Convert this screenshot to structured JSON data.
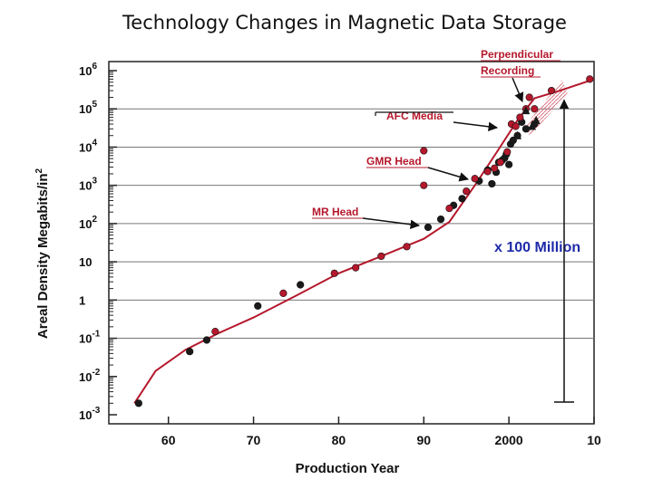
{
  "chart_data": {
    "type": "scatter",
    "title": "Technology Changes in Magnetic Data Storage",
    "xlabel": "Production Year",
    "ylabel": "Areal Density Megabits/in²",
    "ylabel_base": "Areal Density Megabits/in",
    "ylabel_sup": "2",
    "yscale": "log",
    "xlim": [
      1953,
      2010
    ],
    "ylim": [
      0.001,
      1000000
    ],
    "x_ticks": [
      {
        "value": 1960,
        "label": "60"
      },
      {
        "value": 1970,
        "label": "70"
      },
      {
        "value": 1980,
        "label": "80"
      },
      {
        "value": 1990,
        "label": "90"
      },
      {
        "value": 2000,
        "label": "2000"
      },
      {
        "value": 2010,
        "label": "10"
      }
    ],
    "y_ticks": [
      {
        "value": 0.001,
        "base": "10",
        "sup": "-3"
      },
      {
        "value": 0.01,
        "base": "10",
        "sup": "-2"
      },
      {
        "value": 0.1,
        "base": "10",
        "sup": "-1"
      },
      {
        "value": 1,
        "base": "1",
        "sup": ""
      },
      {
        "value": 10,
        "base": "10",
        "sup": ""
      },
      {
        "value": 100,
        "base": "10",
        "sup": "2"
      },
      {
        "value": 1000,
        "base": "10",
        "sup": "3"
      },
      {
        "value": 10000,
        "base": "10",
        "sup": "4"
      },
      {
        "value": 100000,
        "base": "10",
        "sup": "5"
      },
      {
        "value": 1000000,
        "base": "10",
        "sup": "6"
      }
    ],
    "gridlines_y": [
      0.1,
      1,
      10,
      100,
      1000,
      10000,
      100000
    ],
    "trend_line": {
      "name": "trend",
      "color": "#b5182c",
      "points": [
        [
          1956,
          0.002
        ],
        [
          1958.5,
          0.014
        ],
        [
          1962,
          0.05
        ],
        [
          1966,
          0.14
        ],
        [
          1970,
          0.35
        ],
        [
          1975,
          1.3
        ],
        [
          1980,
          5
        ],
        [
          1985,
          14
        ],
        [
          1990,
          40
        ],
        [
          1993,
          110
        ],
        [
          1996,
          1000
        ],
        [
          1998.5,
          7000
        ],
        [
          2001,
          50000
        ],
        [
          2003,
          190000
        ],
        [
          2006,
          300000
        ],
        [
          2010,
          600000
        ]
      ]
    },
    "series": [
      {
        "name": "Black data points",
        "color": "#1a1a1a",
        "points": [
          [
            1956.5,
            0.002
          ],
          [
            1962.5,
            0.045
          ],
          [
            1964.5,
            0.09
          ],
          [
            1970.5,
            0.7
          ],
          [
            1975.5,
            2.5
          ],
          [
            1990.5,
            80
          ],
          [
            1992,
            130
          ],
          [
            1993.5,
            300
          ],
          [
            1994.5,
            450
          ],
          [
            1996.5,
            1300
          ],
          [
            1997.5,
            2500
          ],
          [
            1998,
            1100
          ],
          [
            1998.5,
            2200
          ],
          [
            1998.8,
            4000
          ],
          [
            1999.2,
            4500
          ],
          [
            1999.5,
            5200
          ],
          [
            1999.7,
            6500
          ],
          [
            2000,
            3500
          ],
          [
            2000.2,
            12000
          ],
          [
            2000.5,
            15000
          ],
          [
            2001,
            20000
          ],
          [
            2001.5,
            45000
          ],
          [
            2002,
            30000
          ],
          [
            2003,
            40000
          ]
        ]
      },
      {
        "name": "Red data points",
        "color": "#b5182c",
        "points": [
          [
            1965.5,
            0.15
          ],
          [
            1973.5,
            1.5
          ],
          [
            1979.5,
            5
          ],
          [
            1982,
            7
          ],
          [
            1985,
            14
          ],
          [
            1988,
            25
          ],
          [
            1993,
            250
          ],
          [
            1995,
            700
          ],
          [
            1996,
            1500
          ],
          [
            1997.5,
            2300
          ],
          [
            1998.3,
            2800
          ],
          [
            1999,
            4000
          ],
          [
            1999.8,
            7500
          ],
          [
            1990,
            1000
          ],
          [
            1990,
            8000
          ],
          [
            2000.3,
            40000
          ],
          [
            2000.8,
            35000
          ],
          [
            2001.3,
            60000
          ],
          [
            2002,
            100000
          ],
          [
            2002.4,
            200000
          ],
          [
            2003,
            100000
          ],
          [
            2005,
            300000
          ],
          [
            2009.5,
            600000
          ]
        ]
      },
      {
        "name": "Triangles",
        "color": "#1a1a1a",
        "points": [
          [
            2001,
            20000
          ],
          [
            2002,
            90000
          ],
          [
            2002.7,
            35000
          ],
          [
            2003.2,
            50000
          ]
        ]
      }
    ],
    "annotations": [
      {
        "text_lines": [
          "Perpendicular",
          "Recording"
        ],
        "arrow_to": [
          2002.5,
          200000
        ]
      },
      {
        "text_lines": [
          "AFC Media"
        ],
        "arrow_to": [
          2001,
          45000
        ]
      },
      {
        "text_lines": [
          "GMR Head"
        ],
        "arrow_to": [
          1997.5,
          2200
        ]
      },
      {
        "text_lines": [
          "MR Head"
        ],
        "arrow_to": [
          1992,
          100
        ]
      },
      {
        "text_lines": [
          "x 100 Million"
        ],
        "range": [
          0.001,
          170000
        ]
      }
    ]
  }
}
